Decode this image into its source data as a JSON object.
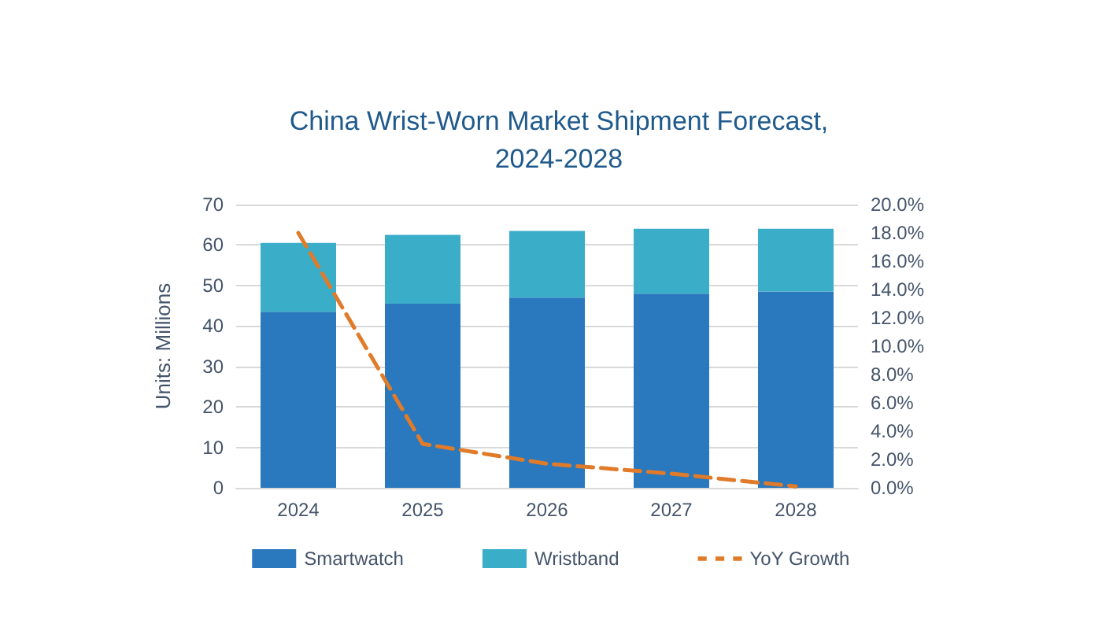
{
  "chart_data": {
    "type": "bar",
    "title": "China Wrist-Worn Market Shipment Forecast,\n2024-2028",
    "ylabel": "Units: Millions",
    "categories": [
      "2024",
      "2025",
      "2026",
      "2027",
      "2028"
    ],
    "stacked": true,
    "series": [
      {
        "name": "Smartwatch",
        "color": "#2a78bd",
        "values": [
          43.5,
          45.5,
          47,
          48,
          48.5
        ]
      },
      {
        "name": "Wristband",
        "color": "#3aadc8",
        "values": [
          17,
          17,
          16.5,
          16,
          15.5
        ]
      },
      {
        "name": "YoY Growth",
        "type": "line",
        "axis": "y2",
        "color": "#e07b2a",
        "line_style": "dashed",
        "marker": "none",
        "values": [
          18,
          3.1,
          1.7,
          1,
          0.1
        ]
      }
    ],
    "ylim": [
      0,
      70
    ],
    "yticks": [
      0,
      10,
      20,
      30,
      40,
      50,
      60,
      70
    ],
    "y2lim": [
      0,
      20
    ],
    "y2ticks": [
      {
        "value": 0,
        "label": "0.0%"
      },
      {
        "value": 2,
        "label": "2.0%"
      },
      {
        "value": 4,
        "label": "4.0%"
      },
      {
        "value": 6,
        "label": "6.0%"
      },
      {
        "value": 8,
        "label": "8.0%"
      },
      {
        "value": 10,
        "label": "10.0%"
      },
      {
        "value": 12,
        "label": "12.0%"
      },
      {
        "value": 14,
        "label": "14.0%"
      },
      {
        "value": 16,
        "label": "16.0%"
      },
      {
        "value": 18,
        "label": "18.0%"
      },
      {
        "value": 20,
        "label": "20.0%"
      }
    ],
    "grid": "y",
    "legend": "bottom"
  }
}
